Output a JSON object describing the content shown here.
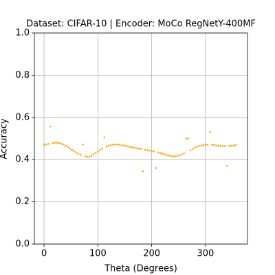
{
  "chart_data": {
    "type": "scatter",
    "title": "Dataset: CIFAR-10 | Encoder: MoCo RegNetY-400MF",
    "x_label": "Theta (Degrees)",
    "y_label": "Accuracy",
    "color": "#ffa500",
    "grid": true,
    "xlim": [
      -18,
      378
    ],
    "ylim": [
      0,
      1
    ],
    "xticks": [
      0,
      100,
      200,
      300
    ],
    "yticks": [
      {
        "value": 0,
        "label": "0.0"
      },
      {
        "value": 0.2,
        "label": "0.2"
      },
      {
        "value": 0.4,
        "label": "0.4"
      },
      {
        "value": 0.6,
        "label": "0.6"
      },
      {
        "value": 0.8,
        "label": "0.8"
      },
      {
        "value": 1,
        "label": "1.0"
      }
    ],
    "x": [
      0,
      4,
      8,
      12,
      16,
      20,
      24,
      28,
      32,
      36,
      40,
      44,
      48,
      52,
      56,
      60,
      64,
      68,
      72,
      76,
      80,
      84,
      88,
      92,
      96,
      100,
      104,
      108,
      112,
      116,
      120,
      124,
      128,
      132,
      136,
      140,
      144,
      148,
      152,
      156,
      160,
      164,
      168,
      172,
      176,
      180,
      184,
      188,
      192,
      196,
      200,
      204,
      208,
      212,
      216,
      220,
      224,
      228,
      232,
      236,
      240,
      244,
      248,
      252,
      256,
      260,
      264,
      268,
      272,
      276,
      280,
      284,
      288,
      292,
      296,
      300,
      304,
      308,
      312,
      316,
      320,
      324,
      328,
      332,
      336,
      340,
      344,
      348,
      352,
      356
    ],
    "values": [
      0.47,
      0.472,
      0.475,
      0.557,
      0.478,
      0.48,
      0.48,
      0.479,
      0.476,
      0.472,
      0.466,
      0.46,
      0.453,
      0.446,
      0.44,
      0.433,
      0.427,
      0.423,
      0.472,
      0.416,
      0.413,
      0.414,
      0.418,
      0.425,
      0.432,
      0.438,
      0.445,
      0.452,
      0.505,
      0.462,
      0.466,
      0.469,
      0.471,
      0.472,
      0.472,
      0.471,
      0.469,
      0.467,
      0.465,
      0.462,
      0.46,
      0.458,
      0.456,
      0.454,
      0.452,
      0.45,
      0.345,
      0.447,
      0.445,
      0.443,
      0.441,
      0.439,
      0.36,
      0.434,
      0.431,
      0.428,
      0.425,
      0.422,
      0.419,
      0.417,
      0.416,
      0.416,
      0.418,
      0.421,
      0.425,
      0.43,
      0.5,
      0.5,
      0.444,
      0.451,
      0.457,
      0.462,
      0.465,
      0.467,
      0.469,
      0.47,
      0.471,
      0.53,
      0.471,
      0.47,
      0.468,
      0.466,
      0.465,
      0.464,
      0.464,
      0.37,
      0.465,
      0.466,
      0.467,
      0.469
    ]
  }
}
